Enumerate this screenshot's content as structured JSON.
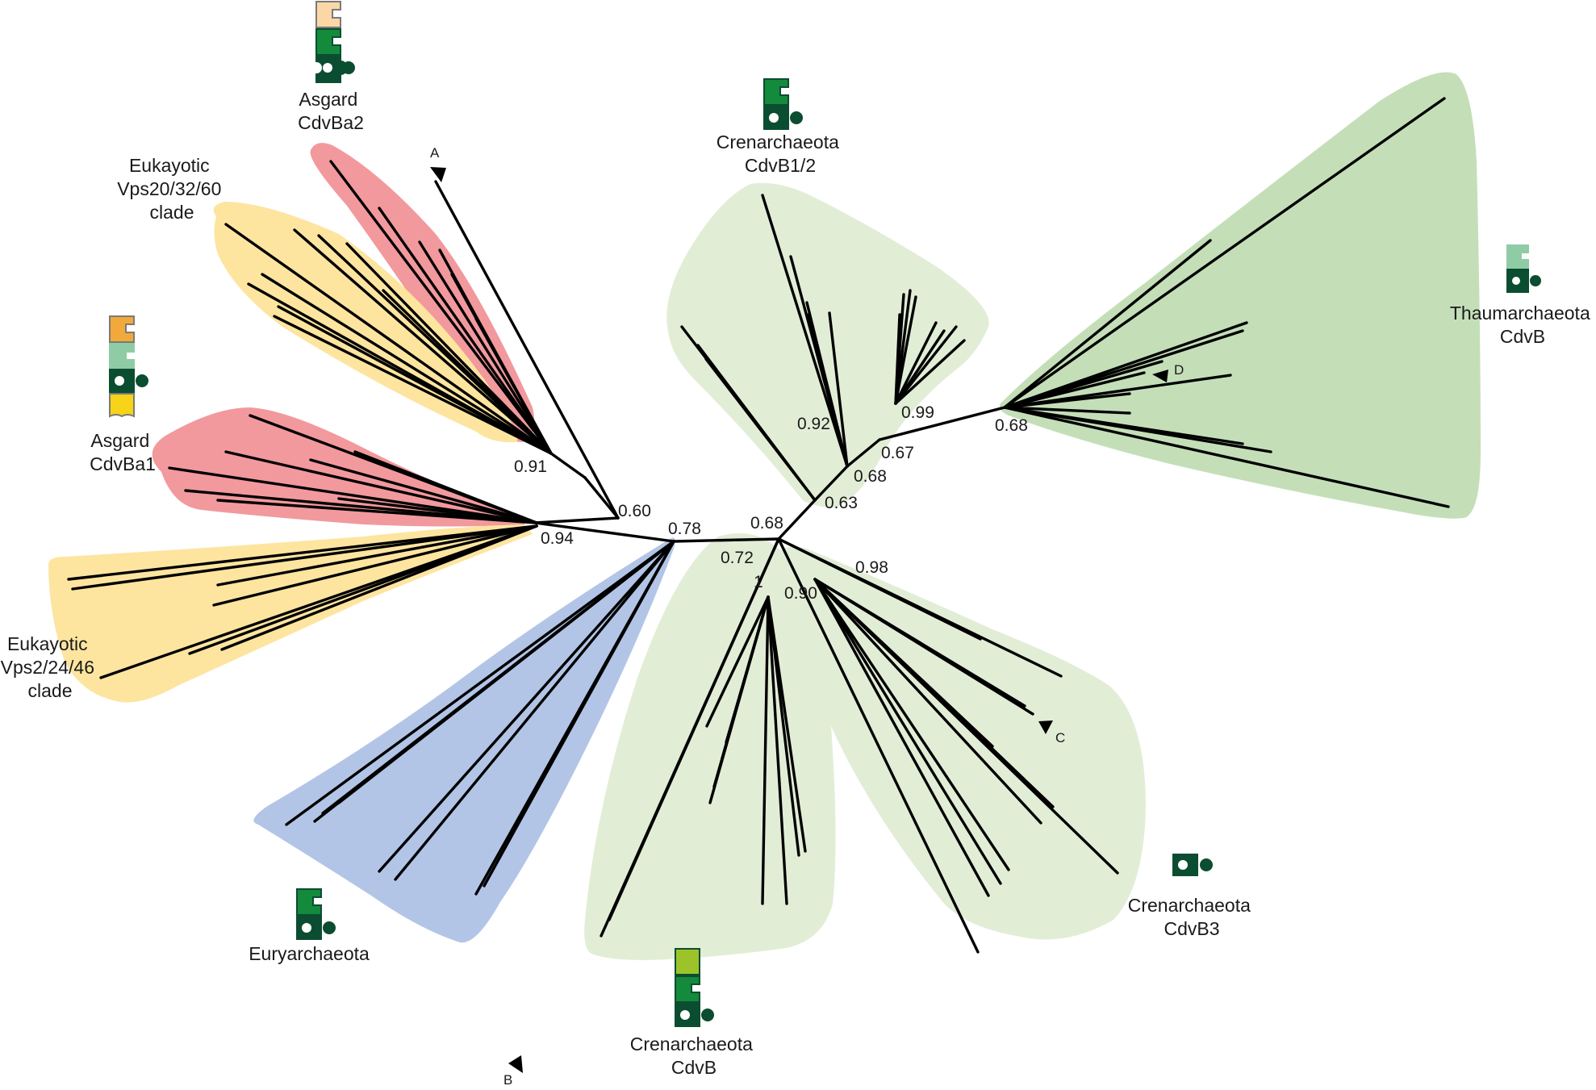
{
  "colors": {
    "red": "#f2999d",
    "yellow": "#fde5a0",
    "blue": "#b3c5e6",
    "lightgreen": "#e2edd6",
    "green": "#c4dfb8",
    "branch": "#000000"
  },
  "clade_labels": [
    {
      "id": "asgard-cdvba2",
      "lines": [
        "Asgard",
        "CdvBa2"
      ]
    },
    {
      "id": "eukaryotic-vps20",
      "lines": [
        "Eukayotic",
        "Vps20/32/60",
        "clade"
      ]
    },
    {
      "id": "asgard-cdvba1",
      "lines": [
        "Asgard",
        "CdvBa1"
      ]
    },
    {
      "id": "eukaryotic-vps2",
      "lines": [
        "Eukayotic",
        "Vps2/24/46",
        "clade"
      ]
    },
    {
      "id": "euryarchaeota",
      "lines": [
        "Euryarchaeota"
      ]
    },
    {
      "id": "crenarchaeota-cdvb",
      "lines": [
        "Crenarchaeota",
        "CdvB"
      ]
    },
    {
      "id": "crenarchaeota-cdvb3",
      "lines": [
        "Crenarchaeota",
        "CdvB3"
      ]
    },
    {
      "id": "crenarchaeota-cdvb12",
      "lines": [
        "Crenarchaeota",
        "CdvB1/2"
      ]
    },
    {
      "id": "thaumarchaeota-cdvb",
      "lines": [
        "Thaumarchaeota",
        "CdvB"
      ]
    }
  ],
  "support_values": [
    "0.91",
    "0.94",
    "0.60",
    "0.78",
    "0.72",
    "1",
    "0.68",
    "0.63",
    "0.68",
    "0.67",
    "0.92",
    "0.99",
    "0.68",
    "0.90",
    "0.98"
  ],
  "collapsed_markers": [
    "A",
    "B",
    "C",
    "D"
  ],
  "domain_icons": [
    {
      "clade": "asgard-cdvba2",
      "blocks": [
        "#fbd7a8",
        "#148a3c",
        "#0b4d30"
      ]
    },
    {
      "clade": "asgard-cdvba1",
      "blocks": [
        "#f2a93b",
        "#8fcca5",
        "#0b4d30",
        "#f7d417"
      ]
    },
    {
      "clade": "crenarchaeota-cdvb12",
      "blocks": [
        "#148a3c",
        "#0b4d30"
      ]
    },
    {
      "clade": "thaumarchaeota-cdvb",
      "blocks": [
        "#8fcca5",
        "#0b4d30"
      ]
    },
    {
      "clade": "euryarchaeota",
      "blocks": [
        "#148a3c",
        "#0b4d30"
      ]
    },
    {
      "clade": "crenarchaeota-cdvb",
      "blocks": [
        "#9cc42a",
        "#148a3c",
        "#0b4d30"
      ]
    },
    {
      "clade": "crenarchaeota-cdvb3",
      "blocks": [
        "#0b4d30"
      ]
    }
  ]
}
